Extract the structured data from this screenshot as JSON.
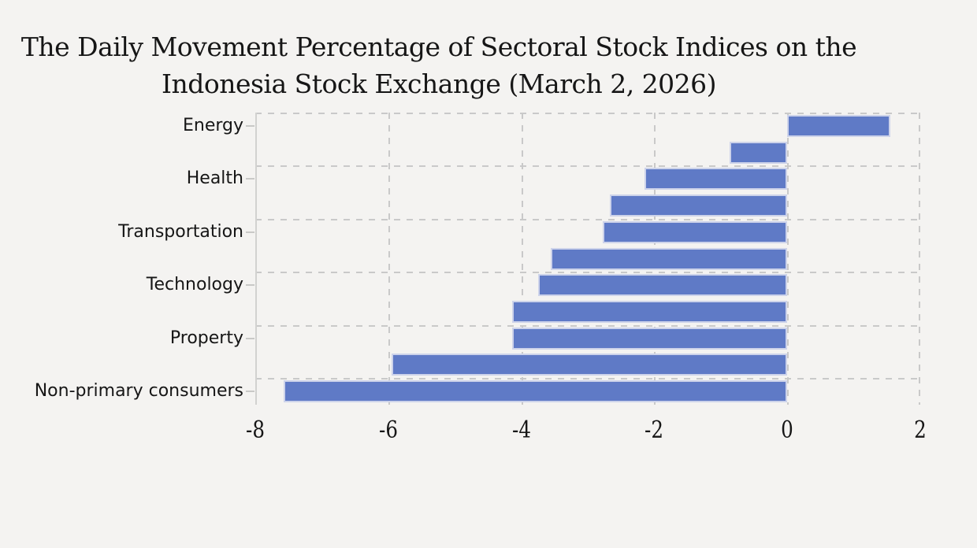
{
  "figure": {
    "title_line1": "The Daily Movement Percentage of Sectoral Stock Indices on the",
    "title_line2": "Indonesia Stock Exchange (March 2, 2026)"
  },
  "chart_data": {
    "type": "bar",
    "orientation": "horizontal",
    "title": "The Daily Movement Percentage of Sectoral Stock Indices on the Indonesia Stock Exchange (March 2, 2026)",
    "xlabel": "",
    "ylabel": "",
    "unit": "percent (daily movement)",
    "categories": [
      "Energy",
      "",
      "Health",
      "",
      "Transportation",
      "",
      "Technology",
      "",
      "Property",
      "",
      "Non-primary consumers"
    ],
    "visible_category_labels": [
      "Energy",
      "Health",
      "Transportation",
      "Technology",
      "Property",
      "Non-primary consumers"
    ],
    "values": [
      1.55,
      -0.87,
      -2.15,
      -2.67,
      -2.77,
      -3.56,
      -3.75,
      -4.14,
      -4.14,
      -5.95,
      -7.57
    ],
    "xlim": [
      -8,
      2
    ],
    "x_ticks": [
      -8,
      -6,
      -4,
      -2,
      0,
      2
    ],
    "x_tick_labels": [
      "-8",
      "-6",
      "-4",
      "-2",
      "0",
      "2"
    ],
    "grid": "dashed",
    "h_gridlines": "at every second category boundary (group separators)",
    "legend": "none",
    "colors": {
      "bar_fill": "#5f7ac6",
      "bar_edge": "#cdd3ea",
      "grid": "#c9c9c9",
      "spine": "#d2d2d0",
      "background": "#f4f3f1",
      "text": "#161616"
    }
  }
}
